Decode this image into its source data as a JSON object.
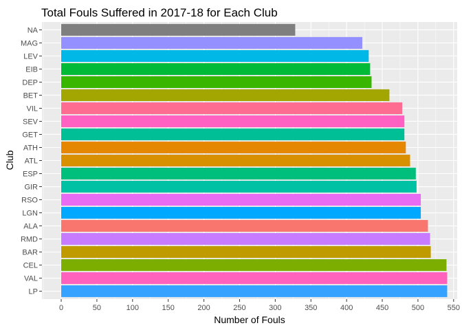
{
  "chart_data": {
    "type": "bar",
    "orientation": "horizontal",
    "title": "Total Fouls Suffered in 2017-18 for Each Club",
    "xlabel": "Number of Fouls",
    "ylabel": "Club",
    "xlim": [
      -27,
      555
    ],
    "x_ticks": [
      0,
      50,
      100,
      150,
      200,
      250,
      300,
      350,
      400,
      450,
      500,
      550
    ],
    "grid": true,
    "legend": "none",
    "bars": [
      {
        "category": "NA",
        "value": 328,
        "color": "#7F7F7F"
      },
      {
        "category": "MAG",
        "value": 422,
        "color": "#9590FF"
      },
      {
        "category": "LEV",
        "value": 431,
        "color": "#00B8E7"
      },
      {
        "category": "EIB",
        "value": 433,
        "color": "#00BA38"
      },
      {
        "category": "DEP",
        "value": 435,
        "color": "#39B600"
      },
      {
        "category": "BET",
        "value": 460,
        "color": "#A3A500"
      },
      {
        "category": "VIL",
        "value": 478,
        "color": "#FF6C91"
      },
      {
        "category": "SEV",
        "value": 481,
        "color": "#FF61C3"
      },
      {
        "category": "GET",
        "value": 481,
        "color": "#00BF96"
      },
      {
        "category": "ATH",
        "value": 483,
        "color": "#E58700"
      },
      {
        "category": "ATL",
        "value": 489,
        "color": "#D89000"
      },
      {
        "category": "ESP",
        "value": 497,
        "color": "#00BF7D"
      },
      {
        "category": "GIR",
        "value": 498,
        "color": "#00C1A3"
      },
      {
        "category": "RSO",
        "value": 504,
        "color": "#E76BF3"
      },
      {
        "category": "LGN",
        "value": 504,
        "color": "#00A9FF"
      },
      {
        "category": "ALA",
        "value": 514,
        "color": "#F8766D"
      },
      {
        "category": "RMD",
        "value": 517,
        "color": "#C77CFF"
      },
      {
        "category": "BAR",
        "value": 518,
        "color": "#C09B00"
      },
      {
        "category": "CEL",
        "value": 540,
        "color": "#7CAE00"
      },
      {
        "category": "VAL",
        "value": 541,
        "color": "#FF62BC"
      },
      {
        "category": "LP",
        "value": 541,
        "color": "#35A2FF"
      }
    ],
    "panel_background": "#EBEBEB",
    "gridline_color": "#FFFFFF"
  }
}
